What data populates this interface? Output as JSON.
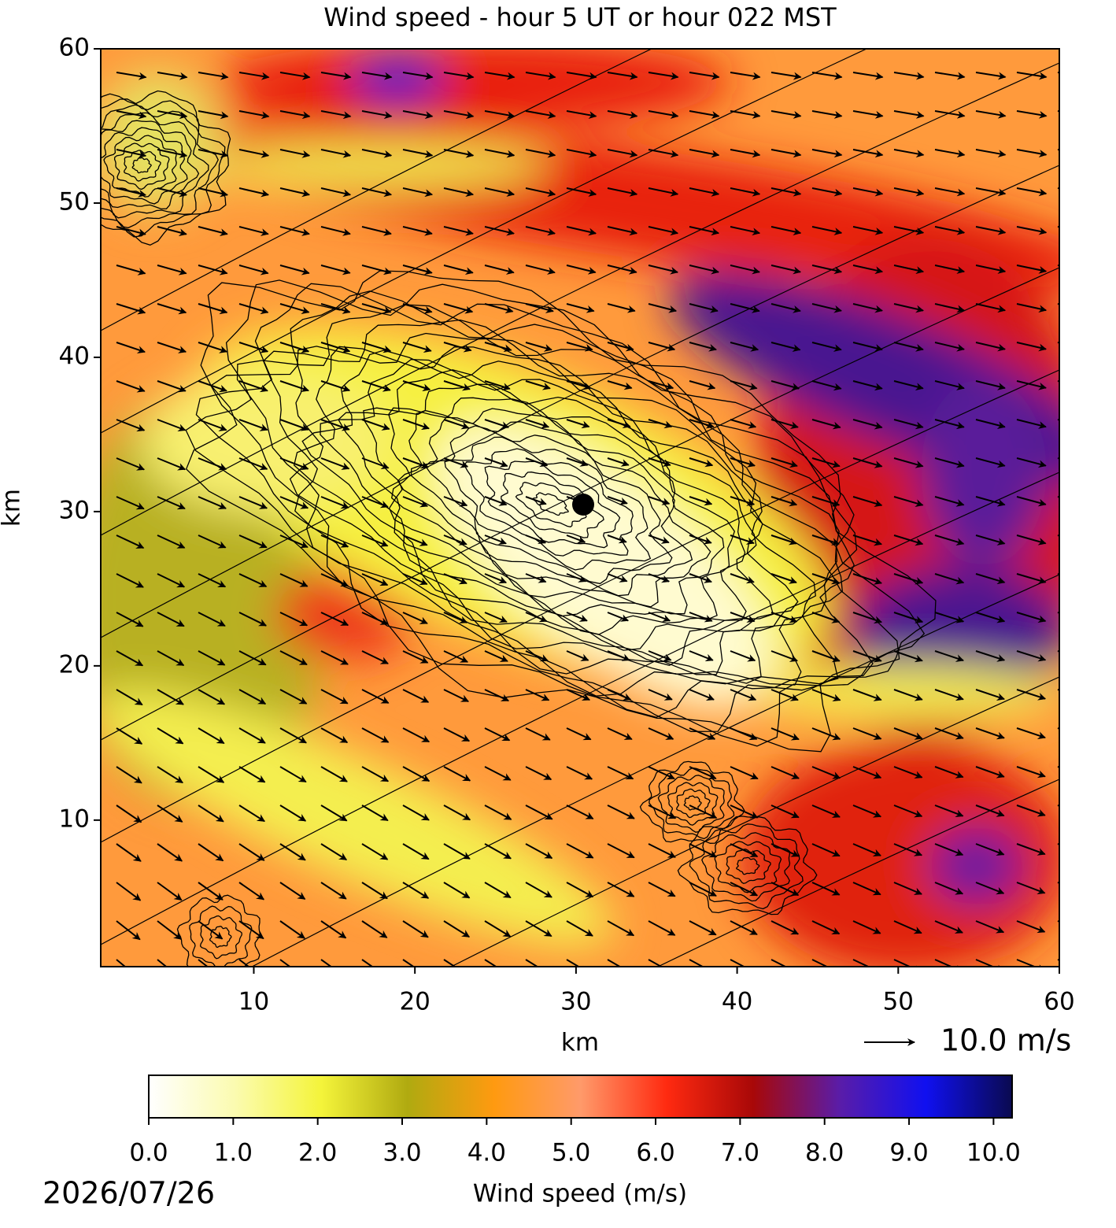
{
  "chart_data": {
    "type": "wind-field",
    "title": "Wind speed - hour 5 UT or hour 022 MST",
    "x_label": "km",
    "y_label": "km",
    "xlim": [
      0.5,
      60
    ],
    "ylim": [
      0.5,
      60
    ],
    "xticks": [
      10,
      20,
      30,
      40,
      50,
      60
    ],
    "yticks": [
      10,
      20,
      30,
      40,
      50,
      60
    ],
    "quiver_key": "10.0 m/s",
    "colorbar": {
      "label": "Wind speed (m/s)",
      "lim": [
        0,
        10.22
      ],
      "ticks": [
        {
          "value": 0,
          "label": "0.0"
        },
        {
          "value": 1,
          "label": "1.0"
        },
        {
          "value": 2,
          "label": "2.0"
        },
        {
          "value": 3,
          "label": "3.0"
        },
        {
          "value": 4,
          "label": "4.0"
        },
        {
          "value": 5,
          "label": "5.0"
        },
        {
          "value": 6,
          "label": "6.0"
        },
        {
          "value": 7,
          "label": "7.0"
        },
        {
          "value": 8,
          "label": "8.0"
        },
        {
          "value": 9,
          "label": "9.0"
        },
        {
          "value": 10,
          "label": "10.0"
        }
      ],
      "colors": [
        "#ffffff",
        "#fbfbb0",
        "#f4f43a",
        "#b0aa10",
        "#ff9a10",
        "#ff9a6a",
        "#ff2a10",
        "#a80808",
        "#5a1ca8",
        "#1010f0",
        "#0a0a50"
      ]
    },
    "date": "2026/07/26"
  }
}
